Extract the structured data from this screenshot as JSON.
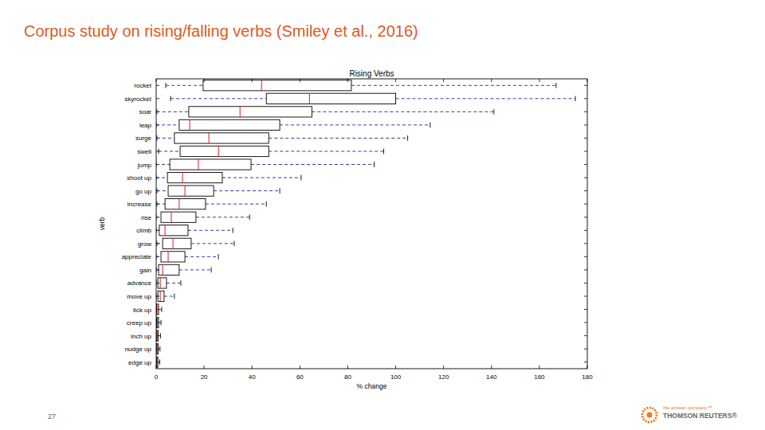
{
  "slide": {
    "title": "Corpus study on rising/falling verbs (Smiley et al., 2016)",
    "page_number": "27",
    "logo": {
      "tagline": "the answer company™",
      "name": "THOMSON REUTERS®"
    }
  },
  "chart_data": {
    "type": "box",
    "orientation": "horizontal",
    "title": "Rising Verbs",
    "x_label": "% change",
    "y_label": "verb",
    "categories": [
      "rocket",
      "skyrocket",
      "soar",
      "leap",
      "surge",
      "swell",
      "jump",
      "shoot up",
      "go up",
      "increase",
      "rise",
      "climb",
      "grow",
      "appreciate",
      "gain",
      "advance",
      "move up",
      "tick up",
      "creep up",
      "inch up",
      "nudge up",
      "edge up"
    ],
    "min": [
      4,
      6,
      0.3,
      0,
      0.3,
      1,
      0,
      0,
      0.3,
      0.3,
      0,
      0,
      0.3,
      0,
      0,
      0,
      0,
      0,
      0,
      0,
      0,
      0
    ],
    "q1": [
      19.6,
      46,
      13.6,
      9.6,
      7.6,
      10,
      5.7,
      4.7,
      5,
      3.7,
      2,
      1.3,
      2.7,
      2,
      1,
      0.7,
      0.7,
      0.2,
      0.2,
      0.2,
      0.2,
      0.2
    ],
    "median": [
      44,
      64,
      35,
      14,
      22,
      26,
      17.6,
      11,
      12,
      9.6,
      6.3,
      3.7,
      7,
      5,
      2.7,
      1.7,
      1.7,
      0.7,
      0.5,
      0.4,
      0.4,
      0.4
    ],
    "q3": [
      81.5,
      100,
      65,
      51.6,
      47,
      47,
      39.6,
      27.6,
      24,
      20.6,
      16.6,
      13.3,
      14.6,
      12,
      9.6,
      4.3,
      3.3,
      1,
      1,
      0.8,
      0.8,
      0.7
    ],
    "max": [
      167,
      175,
      141,
      114.4,
      105,
      95,
      91,
      60.5,
      51.6,
      46,
      39,
      32,
      32.6,
      26,
      23,
      10.3,
      7.6,
      2.3,
      2,
      1.8,
      1.6,
      1.5
    ],
    "xlim": [
      0,
      180
    ],
    "xticks": [
      0,
      20,
      40,
      60,
      80,
      100,
      120,
      140,
      160,
      180
    ]
  }
}
